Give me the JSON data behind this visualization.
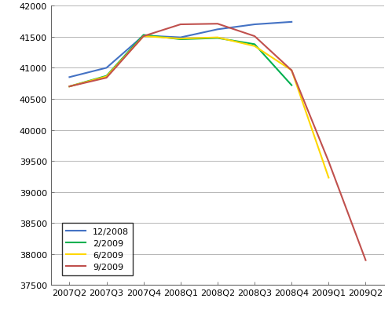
{
  "x_labels": [
    "2007Q2",
    "2007Q3",
    "2007Q4",
    "2008Q1",
    "2008Q2",
    "2008Q3",
    "2008Q4",
    "2009Q1",
    "2009Q2"
  ],
  "series": [
    {
      "label": "12/2008",
      "color": "#4472C4",
      "data": [
        40850,
        41000,
        41520,
        41490,
        41620,
        41700,
        41740,
        null,
        null
      ]
    },
    {
      "label": "2/2009",
      "color": "#00B050",
      "data": [
        40700,
        40870,
        41530,
        41460,
        41480,
        41380,
        40720,
        null,
        null
      ]
    },
    {
      "label": "6/2009",
      "color": "#FFD700",
      "data": [
        40700,
        40860,
        41510,
        41470,
        41490,
        41350,
        40960,
        39230,
        null
      ]
    },
    {
      "label": "9/2009",
      "color": "#C0504D",
      "data": [
        40700,
        40840,
        41510,
        41700,
        41710,
        41510,
        40960,
        39490,
        37900
      ]
    }
  ],
  "ylim": [
    37500,
    42000
  ],
  "yticks": [
    37500,
    38000,
    38500,
    39000,
    39500,
    40000,
    40500,
    41000,
    41500,
    42000
  ],
  "background_color": "#FFFFFF",
  "grid_color": "#AAAAAA",
  "line_width": 1.5,
  "tick_fontsize": 8,
  "legend_fontsize": 8
}
